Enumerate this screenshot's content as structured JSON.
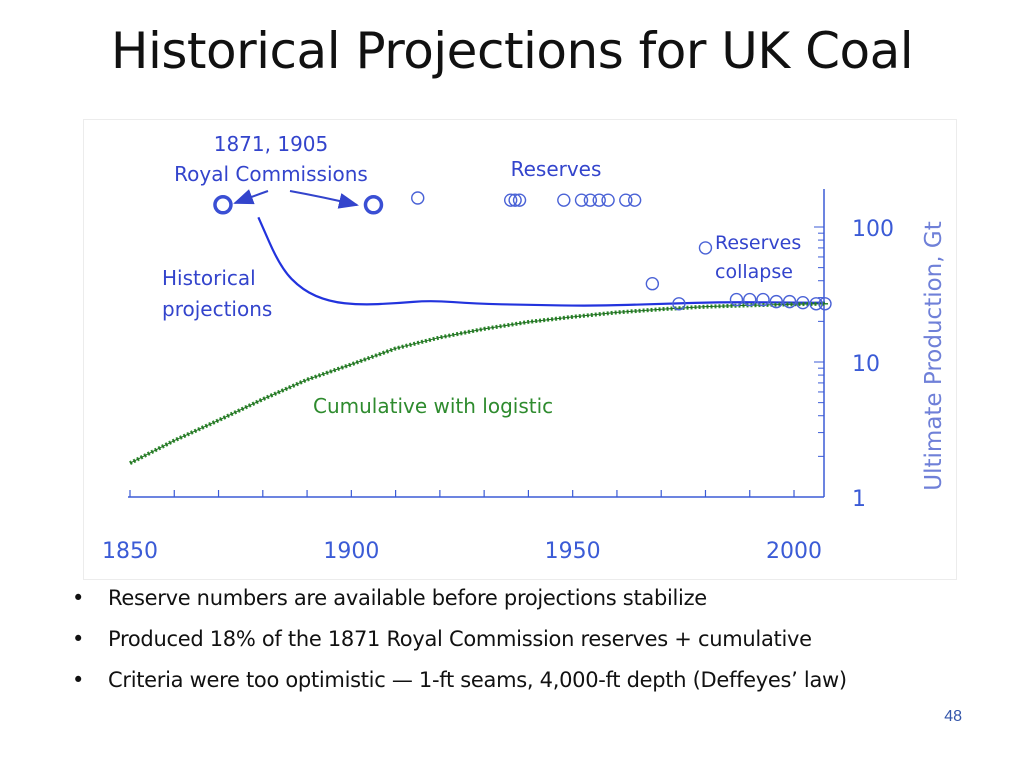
{
  "slide": {
    "title": "Historical Projections for UK Coal",
    "bullets": [
      "Reserve numbers are available before projections stabilize",
      "Produced 18% of the 1871 Royal Commission reserves + cumulative",
      "Criteria were too optimistic — 1-ft seams, 4,000-ft depth (Deffeyes’ law)"
    ],
    "bullet_glyph": "•",
    "page_number": "48"
  },
  "chart_data": {
    "type": "scatter",
    "title": "",
    "xlabel": "",
    "ylabel": "Ultimate Production, Gt",
    "x_ticks": [
      1850,
      1900,
      1950,
      2000
    ],
    "y_ticks": [
      1,
      10,
      100
    ],
    "y_scale": "log",
    "xlim": [
      1850,
      2007
    ],
    "ylim": [
      1,
      200
    ],
    "grid": false,
    "annotations": {
      "royal_commissions": "1871, 1905\nRoyal Commissions",
      "reserves": "Reserves",
      "reserves_collapse": "Reserves\ncollapse",
      "historical_projections": "Historical\nprojections",
      "cumulative_logistic": "Cumulative with logistic"
    },
    "series": [
      {
        "kind": "royal_commission_points",
        "color": "#3a4fd4",
        "points": [
          [
            1871,
            146
          ],
          [
            1905,
            146
          ]
        ]
      },
      {
        "kind": "reserve_points",
        "color": "#4a62d6",
        "points": [
          [
            1915,
            164
          ],
          [
            1936,
            158
          ],
          [
            1937,
            158
          ],
          [
            1938,
            158
          ],
          [
            1948,
            158
          ],
          [
            1952,
            158
          ],
          [
            1954,
            158
          ],
          [
            1956,
            158
          ],
          [
            1958,
            158
          ],
          [
            1962,
            158
          ],
          [
            1964,
            158
          ],
          [
            1968,
            38
          ],
          [
            1974,
            27
          ],
          [
            1980,
            70
          ],
          [
            1987,
            29
          ],
          [
            1990,
            29
          ],
          [
            1993,
            29
          ],
          [
            1996,
            28
          ],
          [
            1999,
            28
          ],
          [
            2002,
            27.5
          ],
          [
            2005,
            27
          ],
          [
            2007,
            27
          ]
        ]
      },
      {
        "kind": "historical_projections_line",
        "color": "#2233dd",
        "points": [
          [
            1879,
            118
          ],
          [
            1884,
            50
          ],
          [
            1889,
            34
          ],
          [
            1895,
            28
          ],
          [
            1902,
            26.5
          ],
          [
            1910,
            27.2
          ],
          [
            1918,
            28.6
          ],
          [
            1928,
            27
          ],
          [
            1940,
            26.5
          ],
          [
            1955,
            26
          ],
          [
            1970,
            27
          ],
          [
            1985,
            27.8
          ],
          [
            2000,
            27.5
          ],
          [
            2007,
            27.5
          ]
        ]
      },
      {
        "kind": "cumulative_logistic_line",
        "color": "#2e8b2e",
        "points": [
          [
            1850,
            1.78
          ],
          [
            1860,
            2.62
          ],
          [
            1870,
            3.7
          ],
          [
            1880,
            5.3
          ],
          [
            1890,
            7.4
          ],
          [
            1900,
            9.6
          ],
          [
            1910,
            12.6
          ],
          [
            1920,
            15.2
          ],
          [
            1930,
            17.6
          ],
          [
            1940,
            19.8
          ],
          [
            1950,
            21.6
          ],
          [
            1960,
            23.3
          ],
          [
            1970,
            24.6
          ],
          [
            1980,
            25.7
          ],
          [
            1990,
            26.3
          ],
          [
            2000,
            26.8
          ],
          [
            2007,
            27
          ]
        ]
      }
    ],
    "colors": {
      "axis": "#3b5bd6",
      "annotation_blue": "#3344cc",
      "annotation_green": "#2e8b2e",
      "ylabel": "#6f80d8"
    }
  }
}
